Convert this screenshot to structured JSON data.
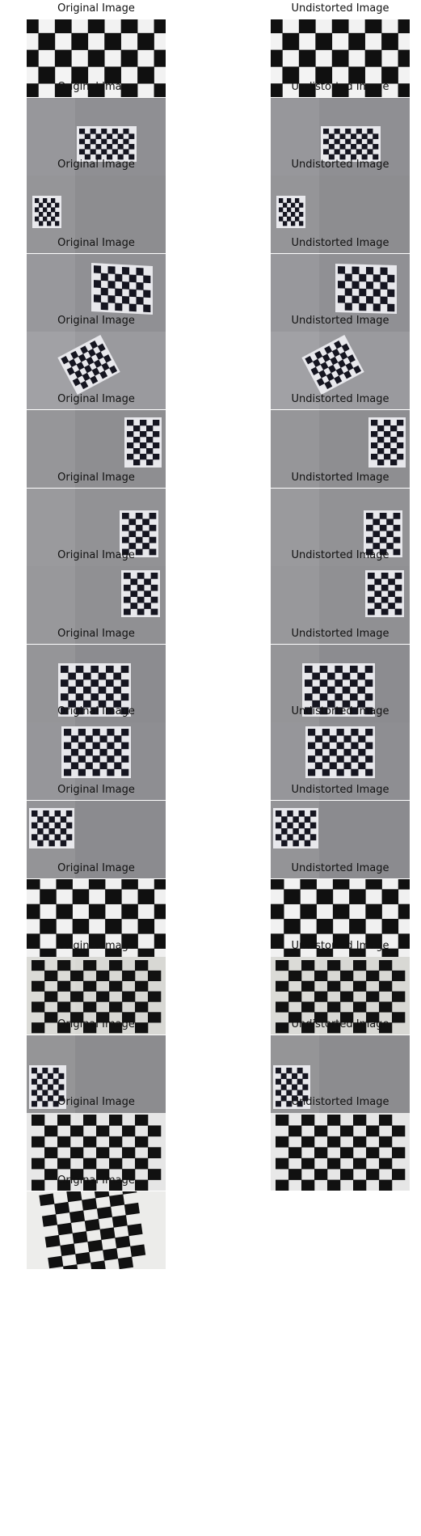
{
  "figure": {
    "titles": {
      "original": "Original Image",
      "undistorted": "Undistorted Image"
    },
    "pairs": [
      {
        "scene": "closeup-full"
      },
      {
        "scene": "grey-board-right"
      },
      {
        "scene": "grey-board-far-left"
      },
      {
        "scene": "grey-board-center-right"
      },
      {
        "scene": "grey-board-tilted-left"
      },
      {
        "scene": "grey-board-edge-right"
      },
      {
        "scene": "grey-board-edge-right-2"
      },
      {
        "scene": "grey-board-edge-right-3"
      },
      {
        "scene": "grey-board-center-large"
      },
      {
        "scene": "grey-board-center-large-2"
      },
      {
        "scene": "grey-board-left"
      },
      {
        "scene": "closeup-full-2"
      },
      {
        "scene": "fisheye-white"
      },
      {
        "scene": "grey-board-left-2"
      },
      {
        "scene": "closeup-perspective"
      },
      {
        "scene": "closeup-tilted",
        "undistorted": false
      }
    ]
  }
}
